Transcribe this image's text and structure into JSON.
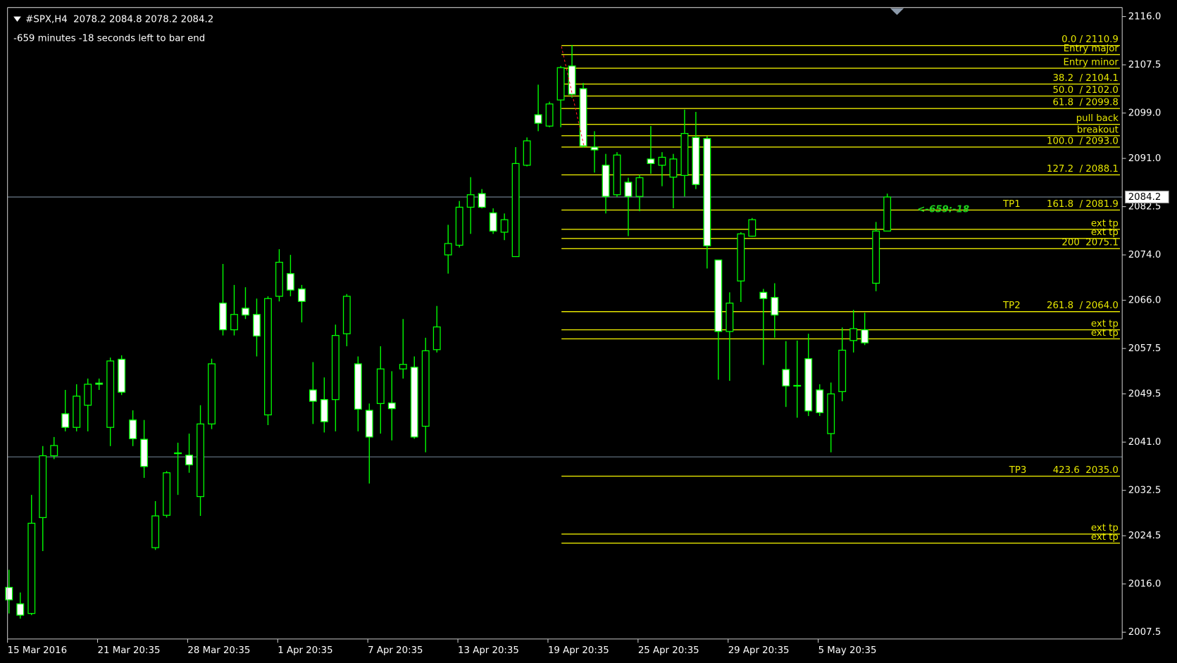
{
  "chart_data": {
    "type": "candlestick",
    "header": "#SPX,H4  2078.2 2084.8 2078.2 2084.2",
    "subtitle": "-659 minutes -18 seconds left to bar end",
    "countdown": "<-659:-18",
    "categories": [
      "15 Mar 2016",
      null,
      null,
      null,
      null,
      null,
      null,
      null,
      "21 Mar 20:35",
      null,
      null,
      null,
      null,
      null,
      null,
      null,
      "28 Mar 20:35",
      null,
      null,
      null,
      null,
      null,
      null,
      null,
      "1 Apr 20:35",
      null,
      null,
      null,
      null,
      null,
      null,
      null,
      "7 Apr 20:35",
      null,
      null,
      null,
      null,
      null,
      null,
      null,
      "13 Apr 20:35",
      null,
      null,
      null,
      null,
      null,
      null,
      null,
      "19 Apr 20:35",
      null,
      null,
      null,
      null,
      null,
      null,
      null,
      "25 Apr 20:35",
      null,
      null,
      null,
      null,
      null,
      null,
      null,
      "29 Apr 20:35",
      null,
      null,
      null,
      null,
      null,
      null,
      null,
      "5 May 20:35",
      null,
      null,
      null,
      null,
      null,
      null
    ],
    "open": [
      2015.4,
      2012.5,
      2010.8,
      2027.7,
      2038.6,
      2046.0,
      2043.6,
      2047.5,
      2051.4,
      2043.6,
      2055.6,
      2044.9,
      2041.5,
      2022.4,
      2028.1,
      2039.0,
      2038.7,
      2031.4,
      2044.2,
      2065.5,
      2060.8,
      2064.6,
      2063.5,
      2045.8,
      2066.7,
      2070.7,
      2068.0,
      2050.2,
      2048.5,
      2048.5,
      2060.1,
      2054.8,
      2046.6,
      2047.8,
      2047.9,
      2053.9,
      2054.2,
      2043.8,
      2057.3,
      2074.0,
      2075.7,
      2082.4,
      2084.8,
      2081.4,
      2078.0,
      2073.7,
      2089.8,
      2098.7,
      2096.7,
      2101.3,
      2107.3,
      2103.3,
      2093.0,
      2089.8,
      2084.6,
      2086.8,
      2084.3,
      2090.9,
      2089.8,
      2087.7,
      2088.0,
      2094.7,
      2094.5,
      2073.1,
      2060.5,
      2069.4,
      2077.3,
      2067.4,
      2066.5,
      2053.8,
      2051.0,
      2055.7,
      2050.2,
      2042.5,
      2049.9,
      2058.9,
      2060.8,
      2069.0,
      2078.2
    ],
    "high": [
      2018.5,
      2014.5,
      2031.7,
      2040.3,
      2041.9,
      2050.2,
      2051.2,
      2052.2,
      2052.2,
      2055.9,
      2056.3,
      2046.6,
      2044.9,
      2030.6,
      2035.9,
      2040.9,
      2042.5,
      2047.5,
      2055.7,
      2072.4,
      2068.7,
      2068.3,
      2066.3,
      2066.7,
      2075.0,
      2074.0,
      2068.7,
      2055.1,
      2052.4,
      2061.7,
      2067.1,
      2056.1,
      2047.8,
      2057.9,
      2053.5,
      2062.7,
      2056.1,
      2059.4,
      2065.0,
      2079.3,
      2083.5,
      2087.7,
      2085.6,
      2082.2,
      2081.3,
      2093.0,
      2094.7,
      2104.0,
      2101.0,
      2107.3,
      2111.0,
      2104.3,
      2095.8,
      2091.8,
      2092.1,
      2087.6,
      2088.1,
      2096.7,
      2092.1,
      2091.8,
      2099.6,
      2099.2,
      2094.9,
      2073.1,
      2067.4,
      2078.0,
      2080.5,
      2068.0,
      2069.0,
      2058.8,
      2058.9,
      2060.1,
      2051.2,
      2051.5,
      2061.2,
      2064.3,
      2063.8,
      2079.8,
      2084.8
    ],
    "low": [
      2010.8,
      2009.9,
      2010.5,
      2021.8,
      2038.0,
      2042.9,
      2042.9,
      2042.9,
      2050.2,
      2040.3,
      2049.3,
      2040.3,
      2034.7,
      2022.0,
      2027.7,
      2031.7,
      2035.6,
      2028.0,
      2043.3,
      2059.8,
      2059.8,
      2062.7,
      2056.1,
      2044.0,
      2065.8,
      2066.7,
      2062.1,
      2044.2,
      2042.7,
      2042.9,
      2057.9,
      2042.9,
      2033.7,
      2042.5,
      2041.3,
      2052.2,
      2041.6,
      2039.2,
      2056.8,
      2070.7,
      2075.3,
      2077.7,
      2082.2,
      2077.7,
      2076.6,
      2073.7,
      2089.6,
      2095.8,
      2096.5,
      2096.5,
      2101.7,
      2092.9,
      2088.5,
      2081.3,
      2084.2,
      2077.3,
      2081.7,
      2088.3,
      2086.1,
      2082.2,
      2084.3,
      2085.6,
      2071.6,
      2052.0,
      2051.8,
      2065.7,
      2077.2,
      2054.6,
      2059.4,
      2047.2,
      2045.3,
      2045.6,
      2045.6,
      2039.2,
      2048.2,
      2056.8,
      2058.1,
      2067.6,
      2078.2
    ],
    "close": [
      2013.2,
      2010.5,
      2026.7,
      2038.6,
      2040.4,
      2043.6,
      2049.1,
      2051.2,
      2051.2,
      2055.3,
      2049.8,
      2041.6,
      2036.7,
      2028.0,
      2035.6,
      2039.1,
      2037.0,
      2044.2,
      2054.8,
      2060.8,
      2063.5,
      2063.4,
      2059.7,
      2066.3,
      2072.7,
      2067.8,
      2065.8,
      2048.2,
      2044.6,
      2059.8,
      2066.7,
      2046.8,
      2041.9,
      2053.9,
      2046.9,
      2054.7,
      2041.9,
      2057.1,
      2061.3,
      2076.0,
      2082.4,
      2084.6,
      2082.4,
      2078.2,
      2080.2,
      2090.1,
      2094.1,
      2097.2,
      2100.6,
      2107.0,
      2102.3,
      2093.2,
      2092.5,
      2084.3,
      2091.6,
      2084.3,
      2087.6,
      2090.1,
      2091.2,
      2090.9,
      2095.4,
      2086.4,
      2075.6,
      2060.5,
      2065.5,
      2077.7,
      2080.2,
      2066.3,
      2063.4,
      2050.9,
      2050.9,
      2046.5,
      2046.2,
      2049.5,
      2057.2,
      2061.0,
      2058.5,
      2078.2,
      2084.2
    ],
    "up_color": "#000000",
    "down_color": "#ffffff",
    "wick_color": "#00ff00",
    "ylim": [
      2006.3,
      2117.6
    ],
    "yticks": [
      {
        "value": 2116,
        "label": "2116.0"
      },
      2107.5,
      {
        "value": 2099,
        "label": "2099.0"
      },
      {
        "value": 2091,
        "label": "2091.0"
      },
      2082.5,
      {
        "value": 2074,
        "label": "2074.0"
      },
      {
        "value": 2066,
        "label": "2066.0"
      },
      2057.5,
      2049.5,
      {
        "value": 2041,
        "label": "2041.0"
      },
      2032.5,
      2024.5,
      {
        "value": 2016,
        "label": "2016.0"
      },
      2007.5
    ],
    "hlines": [
      2084.2,
      2038.4
    ],
    "hline_color": "#778899",
    "level_color": "#e6e600",
    "fib_levels": [
      {
        "label": "0.0 / 2110.9",
        "price": 2110.9
      },
      {
        "label": "Entry major",
        "price": 2109.3
      },
      {
        "label": "Entry minor",
        "price": 2106.9
      },
      {
        "label": "38.2  / 2104.1",
        "price": 2104.1
      },
      {
        "label": "50.0  / 2102.0",
        "price": 2102.0
      },
      {
        "label": "61.8  / 2099.8",
        "price": 2099.8
      },
      {
        "label": "pull back",
        "price": 2097.0
      },
      {
        "label": "breakout",
        "price": 2095.0
      },
      {
        "label": "100.0  / 2093.0",
        "price": 2093.0
      },
      {
        "label": "127.2  / 2088.1",
        "price": 2088.1
      },
      {
        "label": "161.8  / 2081.9",
        "price": 2081.9,
        "tag": "TP1"
      },
      {
        "label": "ext tp",
        "price": 2078.5
      },
      {
        "label": "ext tp",
        "price": 2076.9
      },
      {
        "label": "200  2075.1",
        "price": 2075.1
      },
      {
        "label": "261.8  / 2064.0",
        "price": 2064.0,
        "tag": "TP2"
      },
      {
        "label": "ext tp",
        "price": 2060.8
      },
      {
        "label": "ext tp",
        "price": 2059.2
      },
      {
        "label": "423.6  2035.0",
        "price": 2035.0,
        "tag": "TP3"
      },
      {
        "label": "ext tp",
        "price": 2024.8
      },
      {
        "label": "ext tp",
        "price": 2023.2
      }
    ]
  }
}
